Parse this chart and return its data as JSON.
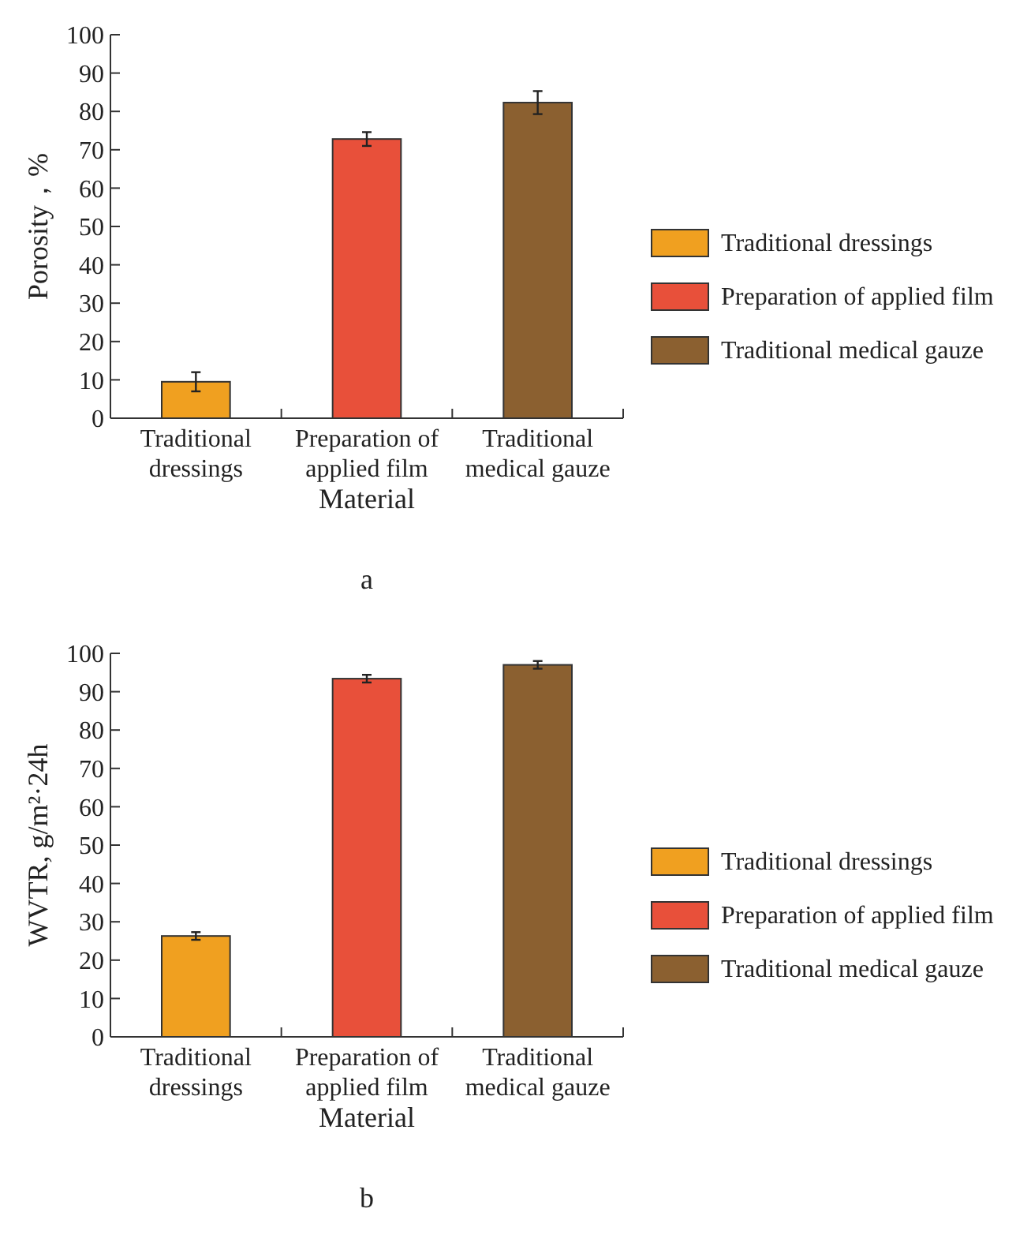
{
  "chart_data": [
    {
      "type": "bar",
      "title": "a",
      "xlabel": "Material",
      "ylabel": "Porosity，%",
      "categories": [
        "Traditional dressings",
        "Preparation of applied film",
        "Traditional medical gauze"
      ],
      "series": [
        {
          "name": "Traditional dressings",
          "color": "#f0a020",
          "values": [
            9.5,
            null,
            null
          ],
          "errors": [
            2.5,
            null,
            null
          ]
        },
        {
          "name": "Preparation of applied film",
          "color": "#e8503a",
          "values": [
            null,
            72.8,
            null
          ],
          "errors": [
            null,
            1.8,
            null
          ]
        },
        {
          "name": "Traditional medical gauze",
          "color": "#8b6030",
          "values": [
            null,
            null,
            82.3
          ],
          "errors": [
            null,
            null,
            3
          ]
        }
      ],
      "ylim": [
        0,
        100
      ],
      "yticks": [
        0,
        10,
        20,
        30,
        40,
        50,
        60,
        70,
        80,
        90,
        100
      ],
      "legend": "right"
    },
    {
      "type": "bar",
      "title": "b",
      "xlabel": "Material",
      "ylabel": "WVTR, g/m²·24h",
      "categories": [
        "Traditional dressings",
        "Preparation of applied film",
        "Traditional medical gauze"
      ],
      "series": [
        {
          "name": "Traditional dressings",
          "color": "#f0a020",
          "values": [
            26.3,
            null,
            null
          ],
          "errors": [
            1,
            null,
            null
          ]
        },
        {
          "name": "Preparation of applied film",
          "color": "#e8503a",
          "values": [
            null,
            93.4,
            null
          ],
          "errors": [
            null,
            1,
            null
          ]
        },
        {
          "name": "Traditional medical gauze",
          "color": "#8b6030",
          "values": [
            null,
            null,
            97
          ],
          "errors": [
            null,
            null,
            1
          ]
        }
      ],
      "ylim": [
        0,
        100
      ],
      "yticks": [
        0,
        10,
        20,
        30,
        40,
        50,
        60,
        70,
        80,
        90,
        100
      ],
      "legend": "right"
    }
  ]
}
